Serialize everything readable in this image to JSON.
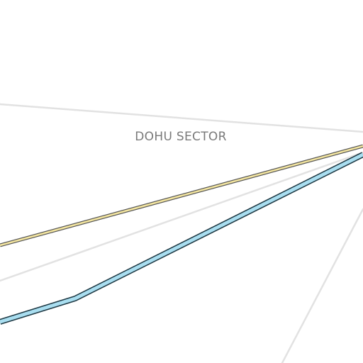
{
  "map": {
    "labels": {
      "sector": "DOHU SECTOR"
    },
    "colors": {
      "background": "#ffffff",
      "minor_road": "#e2e2e2",
      "highlight_route_fill": "#f3e5a0",
      "highlight_route_outline": "#444444",
      "transit_line_fill": "#a9def0",
      "transit_line_outline": "#1f3a45",
      "label_text": "#7a7a7a"
    }
  }
}
